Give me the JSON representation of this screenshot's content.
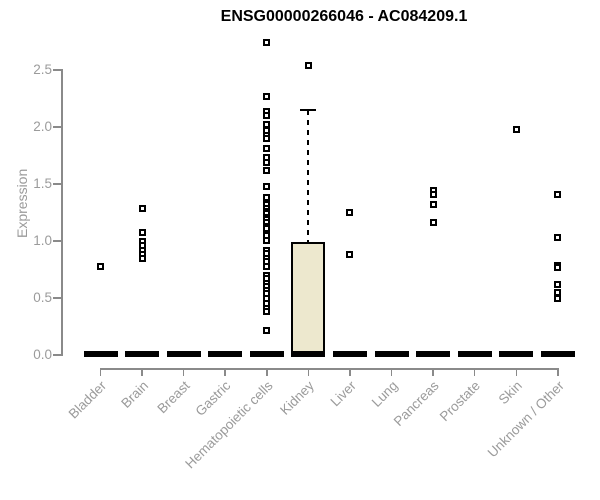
{
  "chart_data": {
    "type": "boxplot",
    "title": "ENSG00000266046 - AC084209.1",
    "ylabel": "Expression",
    "ylim": [
      0,
      2.75
    ],
    "yticks": [
      0.0,
      0.5,
      1.0,
      1.5,
      2.0,
      2.5
    ],
    "ytick_labels": [
      "0.0",
      "0.5",
      "1.0",
      "1.5",
      "2.0",
      "2.5"
    ],
    "grid": false,
    "legend": "none",
    "categories": [
      "Bladder",
      "Brain",
      "Breast",
      "Gastric",
      "Hematopoietic cells",
      "Kidney",
      "Liver",
      "Lung",
      "Pancreas",
      "Prostate",
      "Skin",
      "Unknown / Other"
    ],
    "boxes": [
      {
        "category": "Bladder",
        "median": 0,
        "q1": 0,
        "q3": 0,
        "whisker_low": 0,
        "whisker_high": 0,
        "outliers": [
          0.77
        ]
      },
      {
        "category": "Brain",
        "median": 0,
        "q1": 0,
        "q3": 0,
        "whisker_low": 0,
        "whisker_high": 0,
        "outliers": [
          1.28,
          1.07,
          0.99,
          0.95,
          0.91,
          0.87,
          0.84
        ]
      },
      {
        "category": "Breast",
        "median": 0,
        "q1": 0,
        "q3": 0,
        "whisker_low": 0,
        "whisker_high": 0,
        "outliers": []
      },
      {
        "category": "Gastric",
        "median": 0,
        "q1": 0,
        "q3": 0,
        "whisker_low": 0,
        "whisker_high": 0,
        "outliers": []
      },
      {
        "category": "Hematopoietic cells",
        "median": 0,
        "q1": 0,
        "q3": 0,
        "whisker_low": 0,
        "whisker_high": 0,
        "outliers": [
          2.73,
          2.26,
          2.13,
          2.09,
          2.01,
          1.96,
          1.92,
          1.89,
          1.8,
          1.72,
          1.68,
          1.61,
          1.47,
          1.37,
          1.31,
          1.28,
          1.25,
          1.23,
          1.2,
          1.18,
          1.15,
          1.12,
          1.1,
          1.04,
          1.0,
          0.91,
          0.88,
          0.84,
          0.81,
          0.77,
          0.69,
          0.66,
          0.62,
          0.59,
          0.56,
          0.53,
          0.49,
          0.44,
          0.4,
          0.37,
          0.21
        ]
      },
      {
        "category": "Kidney",
        "median": 0,
        "q1": 0,
        "q3": 0.98,
        "whisker_low": 0,
        "whisker_high": 2.14,
        "outliers": [
          2.53
        ]
      },
      {
        "category": "Liver",
        "median": 0,
        "q1": 0,
        "q3": 0,
        "whisker_low": 0,
        "whisker_high": 0,
        "outliers": [
          1.24,
          0.87
        ]
      },
      {
        "category": "Lung",
        "median": 0,
        "q1": 0,
        "q3": 0,
        "whisker_low": 0,
        "whisker_high": 0,
        "outliers": []
      },
      {
        "category": "Pancreas",
        "median": 0,
        "q1": 0,
        "q3": 0,
        "whisker_low": 0,
        "whisker_high": 0,
        "outliers": [
          1.43,
          1.4,
          1.31,
          1.15
        ]
      },
      {
        "category": "Prostate",
        "median": 0,
        "q1": 0,
        "q3": 0,
        "whisker_low": 0,
        "whisker_high": 0,
        "outliers": []
      },
      {
        "category": "Skin",
        "median": 0,
        "q1": 0,
        "q3": 0,
        "whisker_low": 0,
        "whisker_high": 0,
        "outliers": [
          1.97
        ]
      },
      {
        "category": "Unknown / Other",
        "median": 0,
        "q1": 0,
        "q3": 0,
        "whisker_low": 0,
        "whisker_high": 0,
        "outliers": [
          1.4,
          1.02,
          0.78,
          0.76,
          0.61,
          0.54,
          0.49
        ]
      }
    ],
    "colors": {
      "box_fill": "#EDE8CE",
      "box_border": "#000000",
      "marker": "#000000",
      "median_bar": "#000000",
      "axis_line": "#8A8A8A",
      "axis_text": "#9B9B9B",
      "title_text": "#000000",
      "background": "#FFFFFF"
    }
  }
}
